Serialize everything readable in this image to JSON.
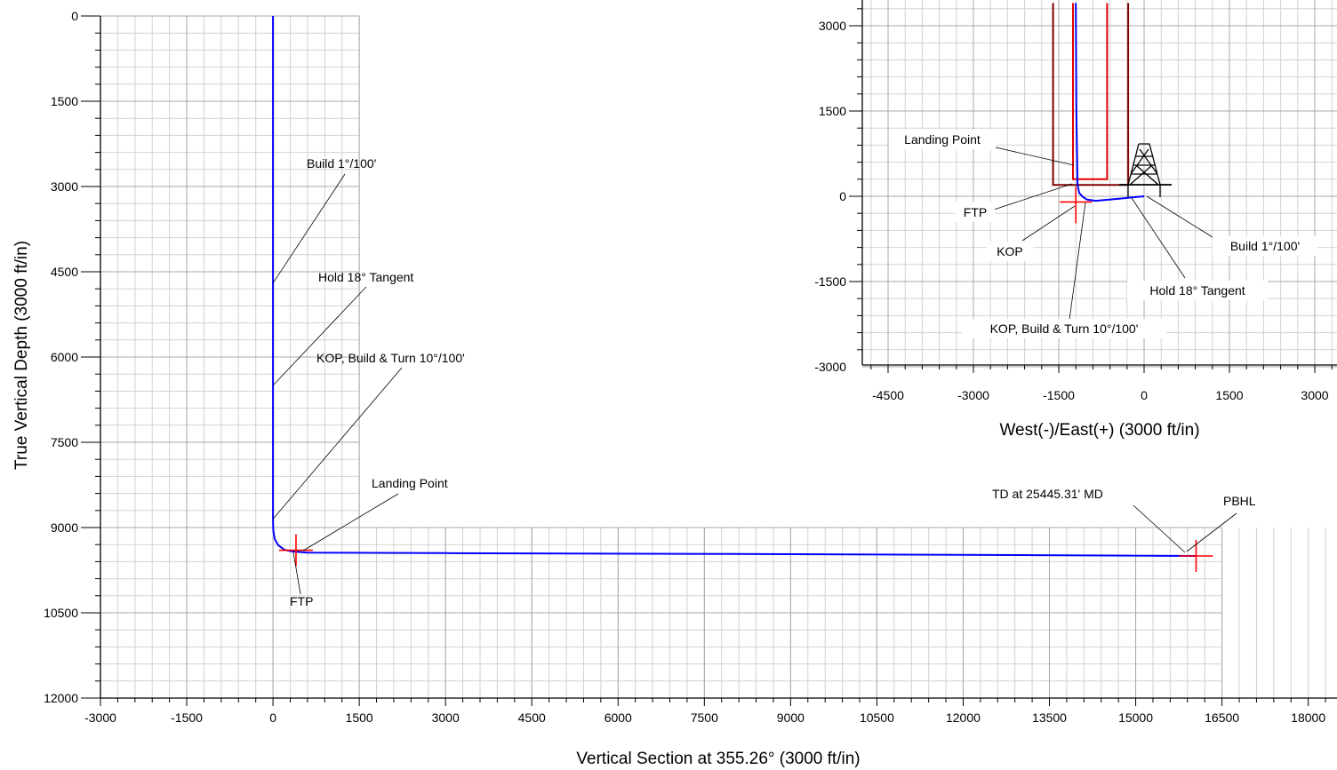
{
  "chart_data": [
    {
      "type": "line",
      "name": "vertical-section",
      "xlabel": "Vertical Section at 355.26° (3000 ft/in)",
      "ylabel": "True Vertical Depth (3000 ft/in)",
      "xlim": [
        -3000,
        18500
      ],
      "ylim": [
        0,
        12000
      ],
      "y_inverted": true,
      "x_ticks": [
        -3000,
        -1500,
        0,
        1500,
        3000,
        4500,
        6000,
        7500,
        9000,
        10500,
        12000,
        13500,
        15000,
        16500,
        18000
      ],
      "y_ticks": [
        0,
        1500,
        3000,
        4500,
        6000,
        7500,
        9000,
        10500,
        12000
      ],
      "grid": true,
      "series": [
        {
          "color": "#0000ff",
          "x": [
            0,
            0,
            0,
            0,
            5,
            30,
            90,
            200,
            330,
            600,
            3000,
            8000,
            12000,
            16050
          ],
          "y": [
            0,
            4700,
            6500,
            8850,
            9050,
            9200,
            9310,
            9390,
            9420,
            9440,
            9450,
            9465,
            9480,
            9500
          ]
        }
      ],
      "markers": [
        {
          "x": 400,
          "y": 9400,
          "color": "#ff0000"
        },
        {
          "x": 16050,
          "y": 9500,
          "color": "#ff0000"
        }
      ],
      "annotations": [
        {
          "text": "Build 1°/100'",
          "x": 0,
          "y": 4700
        },
        {
          "text": "Hold 18° Tangent",
          "x": 0,
          "y": 6500
        },
        {
          "text": "KOP, Build & Turn 10°/100'",
          "x": 0,
          "y": 8850
        },
        {
          "text": "Landing Point",
          "x": 600,
          "y": 9440
        },
        {
          "text": "FTP",
          "x": 400,
          "y": 9400
        },
        {
          "text": "TD at 25445.31' MD",
          "x": 16050,
          "y": 9500
        },
        {
          "text": "PBHL",
          "x": 16050,
          "y": 9500
        }
      ]
    },
    {
      "type": "line",
      "name": "plan-view",
      "xlabel": "West(-)/East(+) (3000 ft/in)",
      "xlim": [
        -5000,
        3300
      ],
      "ylim": [
        -3000,
        3400
      ],
      "x_ticks": [
        -4500,
        -3000,
        -1500,
        0,
        1500,
        3000
      ],
      "y_ticks": [
        -3000,
        -1500,
        0,
        1500,
        3000
      ],
      "grid": true,
      "series": [
        {
          "color": "#0000ff",
          "x": [
            0,
            -420,
            -850,
            -1000,
            -1080,
            -1140,
            -1170,
            -1190,
            -1200
          ],
          "y": [
            0,
            -40,
            -80,
            -60,
            -10,
            60,
            200,
            1500,
            3400
          ]
        }
      ],
      "boundaries": [
        {
          "color": "#800000",
          "points": [
            [
              -1600,
              3400
            ],
            [
              -1600,
              200
            ],
            [
              -280,
              200
            ],
            [
              -280,
              3400
            ]
          ]
        },
        {
          "color": "#e00000",
          "points": [
            [
              -1250,
              3400
            ],
            [
              -1250,
              300
            ],
            [
              -650,
              300
            ],
            [
              -650,
              3400
            ]
          ]
        }
      ],
      "markers": [
        {
          "x": -1200,
          "y": -100,
          "color": "#ff0000"
        }
      ],
      "annotations": [
        {
          "text": "Landing Point",
          "x": -1200,
          "y": 300
        },
        {
          "text": "FTP",
          "x": -1200,
          "y": 200
        },
        {
          "text": "KOP",
          "x": -1100,
          "y": -50
        },
        {
          "text": "KOP, Build & Turn 10°/100'",
          "x": -1050,
          "y": -80
        },
        {
          "text": "Build 1°/100'",
          "x": 0,
          "y": 0
        },
        {
          "text": "Hold 18° Tangent",
          "x": -250,
          "y": -20
        }
      ]
    }
  ],
  "icons": {
    "rig": "drilling-rig-icon"
  }
}
